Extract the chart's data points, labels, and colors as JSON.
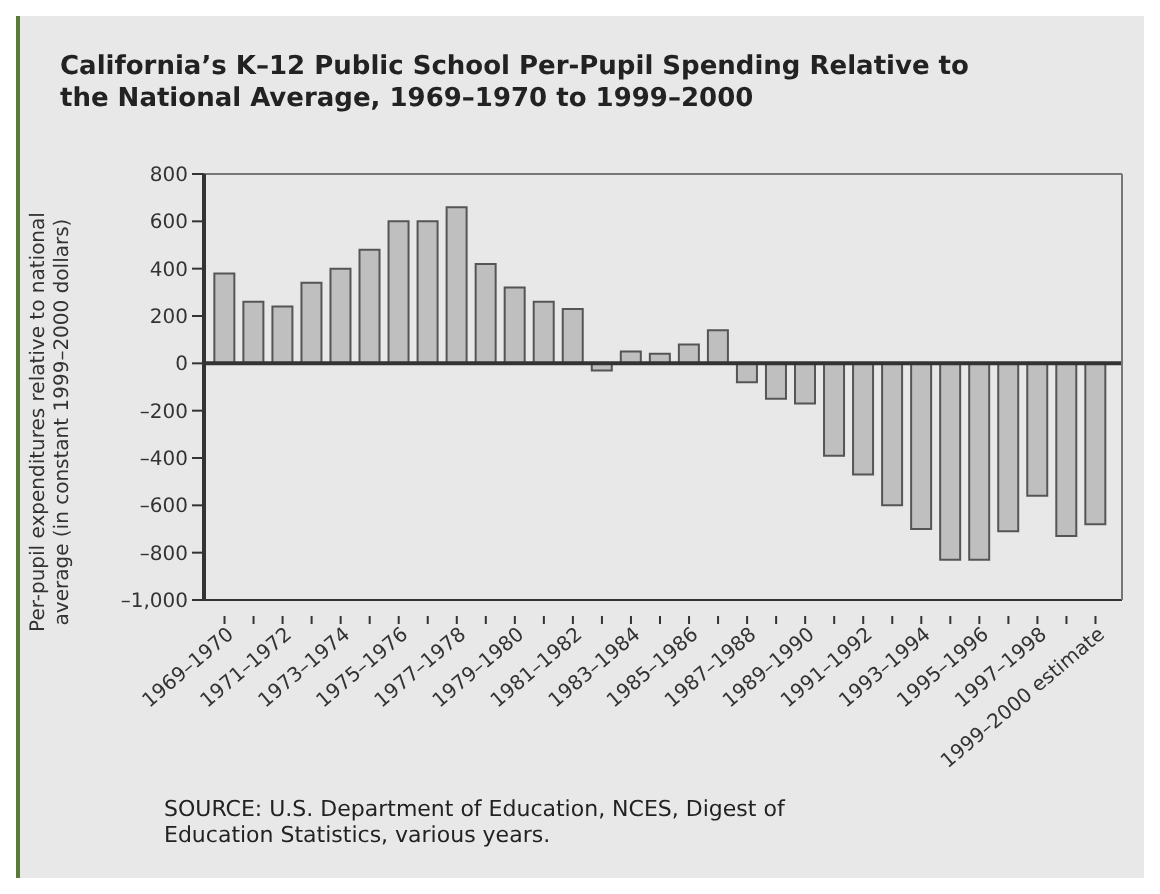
{
  "chart_data": {
    "type": "bar",
    "title": "California’s K–12 Public School Per-Pupil Spending Relative to the National Average, 1969–1970 to 1999–2000",
    "ylabel": "Per-pupil expenditures relative to national\naverage (in constant 1999–2000 dollars)",
    "categories": [
      "1969–1970",
      null,
      "1971–1972",
      null,
      "1973–1974",
      null,
      "1975–1976",
      null,
      "1977–1978",
      null,
      "1979–1980",
      null,
      "1981–1982",
      null,
      "1983–1984",
      null,
      "1985–1986",
      null,
      "1987–1988",
      null,
      "1989–1990",
      null,
      "1991–1992",
      null,
      "1993–1994",
      null,
      "1995–1996",
      null,
      "1997–1998",
      null,
      "1999–2000 estimate"
    ],
    "values": [
      380,
      260,
      240,
      340,
      400,
      480,
      600,
      600,
      660,
      420,
      320,
      260,
      230,
      -30,
      50,
      40,
      80,
      140,
      -80,
      -150,
      -170,
      -390,
      -470,
      -600,
      -700,
      -830,
      -830,
      -710,
      -560,
      -730,
      -680
    ],
    "color": "#bfbfbf",
    "ylim": [
      -1000,
      800
    ],
    "yticks": [
      {
        "value": -1000,
        "label": "–1,000"
      },
      {
        "value": -800,
        "label": "–800"
      },
      {
        "value": -600,
        "label": "–600"
      },
      {
        "value": -400,
        "label": "–400"
      },
      {
        "value": -200,
        "label": "–200"
      },
      0,
      200,
      400,
      600,
      800
    ],
    "ref_lines": [
      {
        "axis": "y",
        "value": 0,
        "color": "#333333"
      }
    ],
    "grid": false,
    "legend": false,
    "annotations": [
      "SOURCE: U.S. Department of Education, NCES, Digest of Education Statistics, various years."
    ]
  }
}
